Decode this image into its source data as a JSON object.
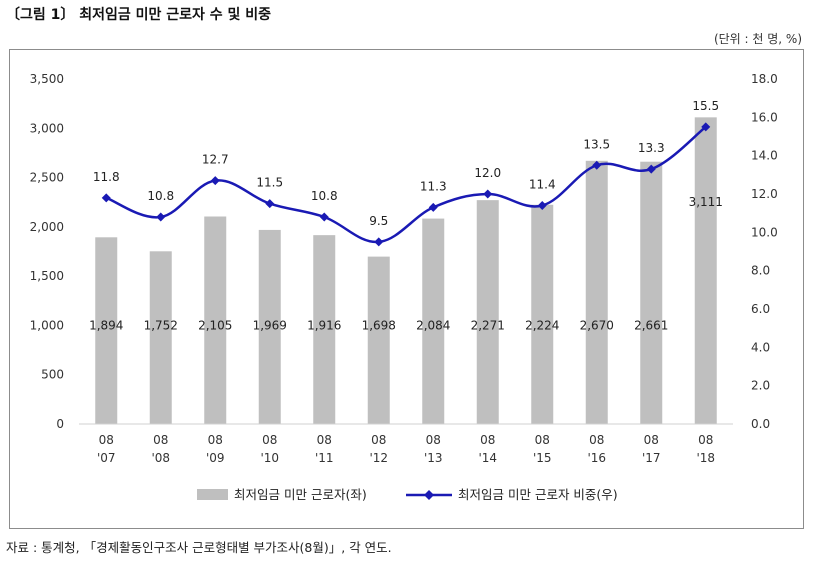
{
  "figure": {
    "title": "〔그림 1〕 최저임금 미만 근로자 수 및 비중",
    "unit": "(단위 : 천 명, %)",
    "source": "자료 : 통계청, 「경제활동인구조사 근로형태별 부가조사(8월)」, 각 연도."
  },
  "chart_data": {
    "type": "bar",
    "categories": [
      [
        "08",
        "'07"
      ],
      [
        "08",
        "'08"
      ],
      [
        "08",
        "'09"
      ],
      [
        "08",
        "'10"
      ],
      [
        "08",
        "'11"
      ],
      [
        "08",
        "'12"
      ],
      [
        "08",
        "'13"
      ],
      [
        "08",
        "'14"
      ],
      [
        "08",
        "'15"
      ],
      [
        "08",
        "'16"
      ],
      [
        "08",
        "'17"
      ],
      [
        "08",
        "'18"
      ]
    ],
    "series": [
      {
        "name": "최저임금 미만 근로자(좌)",
        "type": "bar",
        "axis": "left",
        "color": "#bfbfbf",
        "values": [
          1894,
          1752,
          2105,
          1969,
          1916,
          1698,
          2084,
          2271,
          2224,
          2670,
          2661,
          3111
        ],
        "labels": [
          "1,894",
          "1,752",
          "2,105",
          "1,969",
          "1,916",
          "1,698",
          "2,084",
          "2,271",
          "2,224",
          "2,670",
          "2,661",
          "3,111"
        ]
      },
      {
        "name": "최저임금 미만 근로자 비중(우)",
        "type": "line",
        "axis": "right",
        "color": "#1a1ab4",
        "values": [
          11.8,
          10.8,
          12.7,
          11.5,
          10.8,
          9.5,
          11.3,
          12.0,
          11.4,
          13.5,
          13.3,
          15.5
        ],
        "labels": [
          "11.8",
          "10.8",
          "12.7",
          "11.5",
          "10.8",
          "9.5",
          "11.3",
          "12.0",
          "11.4",
          "13.5",
          "13.3",
          "15.5"
        ]
      }
    ],
    "y_left": {
      "range": [
        0,
        3500
      ],
      "ticks": [
        0,
        500,
        1000,
        1500,
        2000,
        2500,
        3000,
        3500
      ],
      "tick_labels": [
        "0",
        "500",
        "1,000",
        "1,500",
        "2,000",
        "2,500",
        "3,000",
        "3,500"
      ]
    },
    "y_right": {
      "range": [
        0,
        18
      ],
      "ticks": [
        0,
        2,
        4,
        6,
        8,
        10,
        12,
        14,
        16,
        18
      ],
      "tick_labels": [
        "0.0",
        "2.0",
        "4.0",
        "6.0",
        "8.0",
        "10.0",
        "12.0",
        "14.0",
        "16.0",
        "18.0"
      ]
    },
    "grid": false,
    "legend_position": "bottom"
  }
}
